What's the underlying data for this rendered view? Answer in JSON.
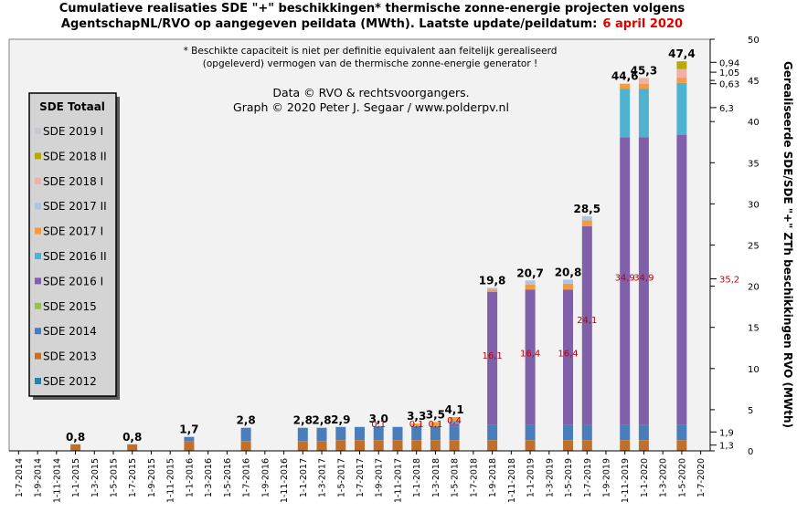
{
  "title": {
    "line1": "Cumulatieve realisaties SDE \"+\" beschikkingen*  thermische zonne-energie projecten volgens",
    "line2": "AgentschapNL/RVO  op aangegeven peildata (MWth).  Laatste update/peildatum:",
    "date": "6 april 2020"
  },
  "footnote": {
    "line1": "* Beschikte capaciteit is niet per definitie equivalent aan feitelijk gerealiseerd",
    "line2": "(opgeleverd) vermogen van de thermische zonne-energie generator !"
  },
  "source": {
    "line1": "Data © RVO & rechtsvoorgangers.",
    "line2": "Graph  © 2020  Peter J. Segaar / www.polderpv.nl"
  },
  "legend": {
    "title": "SDE Totaal",
    "items": [
      {
        "label": "SDE 2019 I",
        "color": "#c8c8d0"
      },
      {
        "label": "SDE 2018 II",
        "color": "#b8a800"
      },
      {
        "label": "SDE 2018 I",
        "color": "#f0b0a8"
      },
      {
        "label": "SDE 2017 II",
        "color": "#b0c4e0"
      },
      {
        "label": "SDE 2017 I",
        "color": "#f59a40"
      },
      {
        "label": "SDE 2016 II",
        "color": "#4fb3d0"
      },
      {
        "label": "SDE 2016 I",
        "color": "#8060a8",
        "highlight": "#c00000"
      },
      {
        "label": "SDE 2015",
        "color": "#9bbb59"
      },
      {
        "label": "SDE 2014",
        "color": "#4a7ebb"
      },
      {
        "label": "SDE 2013",
        "color": "#c0702a"
      },
      {
        "label": "SDE 2012",
        "color": "#2f7f9f"
      }
    ]
  },
  "chart_data": {
    "type": "bar",
    "stacked": true,
    "ylabel": "Gerealiseerde SDE/SDE \"+\" ZTh beschikkingen RVO (MWth)",
    "ylim": [
      0,
      50
    ],
    "yticks": [
      0,
      5,
      10,
      15,
      20,
      25,
      30,
      35,
      40,
      45,
      50
    ],
    "y_axis_side": "right",
    "grid": false,
    "legend_position": "left",
    "categories": [
      "1-7-2014",
      "1-9-2014",
      "1-11-2014",
      "1-1-2015",
      "1-3-2015",
      "1-5-2015",
      "1-7-2015",
      "1-9-2015",
      "1-11-2015",
      "1-1-2016",
      "1-3-2016",
      "1-5-2016",
      "1-7-2016",
      "1-9-2016",
      "1-11-2016",
      "1-1-2017",
      "1-3-2017",
      "1-5-2017",
      "1-7-2017",
      "1-9-2017",
      "1-11-2017",
      "1-1-2018",
      "1-3-2018",
      "1-5-2018",
      "1-7-2018",
      "1-9-2018",
      "1-11-2018",
      "1-1-2019",
      "1-3-2019",
      "1-5-2019",
      "1-7-2019",
      "1-9-2019",
      "1-11-2019",
      "1-1-2020",
      "1-3-2020",
      "1-5-2020",
      "1-7-2020"
    ],
    "series": [
      {
        "name": "SDE 2013",
        "values": [
          0,
          0,
          0,
          0.8,
          0,
          0,
          0.8,
          0,
          0,
          1.2,
          0,
          0,
          1.2,
          0,
          0,
          1.2,
          1.2,
          1.3,
          1.3,
          1.3,
          1.3,
          1.3,
          1.3,
          1.3,
          0,
          1.3,
          0,
          1.3,
          0,
          1.3,
          1.3,
          0,
          1.3,
          1.3,
          0,
          1.3,
          0
        ]
      },
      {
        "name": "SDE 2014",
        "values": [
          0,
          0,
          0,
          0,
          0,
          0,
          0,
          0,
          0,
          0.5,
          0,
          0,
          1.6,
          0,
          0,
          1.6,
          1.6,
          1.6,
          1.6,
          1.6,
          1.6,
          1.6,
          1.6,
          1.6,
          0,
          1.9,
          0,
          1.9,
          0,
          1.9,
          1.9,
          0,
          1.9,
          1.9,
          0,
          1.9,
          0
        ]
      },
      {
        "name": "SDE 2016 I",
        "values": [
          0,
          0,
          0,
          0,
          0,
          0,
          0,
          0,
          0,
          0,
          0,
          0,
          0,
          0,
          0,
          0,
          0,
          0,
          0,
          0.1,
          0,
          0.1,
          0.1,
          0.4,
          0,
          16.1,
          0,
          16.4,
          0,
          16.4,
          24.1,
          0,
          34.9,
          34.9,
          0,
          35.2,
          0
        ]
      },
      {
        "name": "SDE 2016 II",
        "values": [
          0,
          0,
          0,
          0,
          0,
          0,
          0,
          0,
          0,
          0,
          0,
          0,
          0,
          0,
          0,
          0,
          0,
          0,
          0,
          0,
          0,
          0,
          0,
          0.3,
          0,
          0,
          0,
          0,
          0,
          0,
          0,
          0,
          5.9,
          5.9,
          0,
          6.3,
          0
        ]
      },
      {
        "name": "SDE 2017 I",
        "values": [
          0,
          0,
          0,
          0,
          0,
          0,
          0,
          0,
          0,
          0,
          0,
          0,
          0,
          0,
          0,
          0,
          0,
          0,
          0,
          0,
          0,
          0.3,
          0.5,
          0.5,
          0,
          0.3,
          0,
          0.6,
          0,
          0.7,
          0.7,
          0,
          0.6,
          0.6,
          0,
          0.63,
          0
        ]
      },
      {
        "name": "SDE 2017 II",
        "values": [
          0,
          0,
          0,
          0,
          0,
          0,
          0,
          0,
          0,
          0,
          0,
          0,
          0,
          0,
          0,
          0,
          0,
          0,
          0,
          0,
          0,
          0,
          0,
          0,
          0,
          0.2,
          0,
          0.5,
          0,
          0.5,
          0.5,
          0,
          0,
          0,
          0,
          0,
          0
        ]
      },
      {
        "name": "SDE 2018 I",
        "values": [
          0,
          0,
          0,
          0,
          0,
          0,
          0,
          0,
          0,
          0,
          0,
          0,
          0,
          0,
          0,
          0,
          0,
          0,
          0,
          0,
          0,
          0,
          0,
          0,
          0,
          0,
          0,
          0,
          0,
          0,
          0,
          0,
          0,
          0.7,
          0,
          1.05,
          0
        ]
      },
      {
        "name": "SDE 2018 II",
        "values": [
          0,
          0,
          0,
          0,
          0,
          0,
          0,
          0,
          0,
          0,
          0,
          0,
          0,
          0,
          0,
          0,
          0,
          0,
          0,
          0,
          0,
          0,
          0,
          0,
          0,
          0,
          0,
          0,
          0,
          0,
          0,
          0,
          0,
          0,
          0,
          0.94,
          0
        ]
      }
    ],
    "totals": [
      {
        "category": "1-1-2015",
        "label": "0,8"
      },
      {
        "category": "1-7-2015",
        "label": "0,8"
      },
      {
        "category": "1-1-2016",
        "label": "1,7"
      },
      {
        "category": "1-7-2016",
        "label": "2,8"
      },
      {
        "category": "1-1-2017",
        "label": "2,8"
      },
      {
        "category": "1-3-2017",
        "label": "2,8"
      },
      {
        "category": "1-5-2017",
        "label": "2,9"
      },
      {
        "category": "1-9-2017",
        "label": "3,0"
      },
      {
        "category": "1-1-2018",
        "label": "3,3"
      },
      {
        "category": "1-3-2018",
        "label": "3,5"
      },
      {
        "category": "1-5-2018",
        "label": "4,1"
      },
      {
        "category": "1-9-2018",
        "label": "19,8"
      },
      {
        "category": "1-1-2019",
        "label": "20,7"
      },
      {
        "category": "1-5-2019",
        "label": "20,8"
      },
      {
        "category": "1-7-2019",
        "label": "28,5"
      },
      {
        "category": "1-11-2019",
        "label": "44,6"
      },
      {
        "category": "1-1-2020",
        "label": "45,3"
      },
      {
        "category": "1-5-2020",
        "label": "47,4"
      }
    ],
    "segment_labels": [
      {
        "category": "1-9-2017",
        "label": "0,1",
        "y": 2.9
      },
      {
        "category": "1-1-2018",
        "label": "0,1",
        "y": 2.9
      },
      {
        "category": "1-3-2018",
        "label": "0,1",
        "y": 2.9
      },
      {
        "category": "1-5-2018",
        "label": "0,4",
        "y": 3.3
      },
      {
        "category": "1-9-2018",
        "label": "16,1",
        "y": 11.2
      },
      {
        "category": "1-1-2019",
        "label": "16,4",
        "y": 11.5
      },
      {
        "category": "1-5-2019",
        "label": "16,4",
        "y": 11.5
      },
      {
        "category": "1-7-2019",
        "label": "24,1",
        "y": 15.5
      },
      {
        "category": "1-11-2019",
        "label": "34,9",
        "y": 20.7
      },
      {
        "category": "1-1-2020",
        "label": "34,9",
        "y": 20.7
      }
    ],
    "right_labels": [
      {
        "label": "0,94",
        "y": 47.2
      },
      {
        "label": "1,05",
        "y": 46.0
      },
      {
        "label": "0,63",
        "y": 44.6
      },
      {
        "label": "6,3",
        "y": 41.7
      },
      {
        "label": "35,2",
        "y": 20.9
      },
      {
        "label": "1,9",
        "y": 2.3
      },
      {
        "label": "1,3",
        "y": 0.7
      }
    ]
  }
}
